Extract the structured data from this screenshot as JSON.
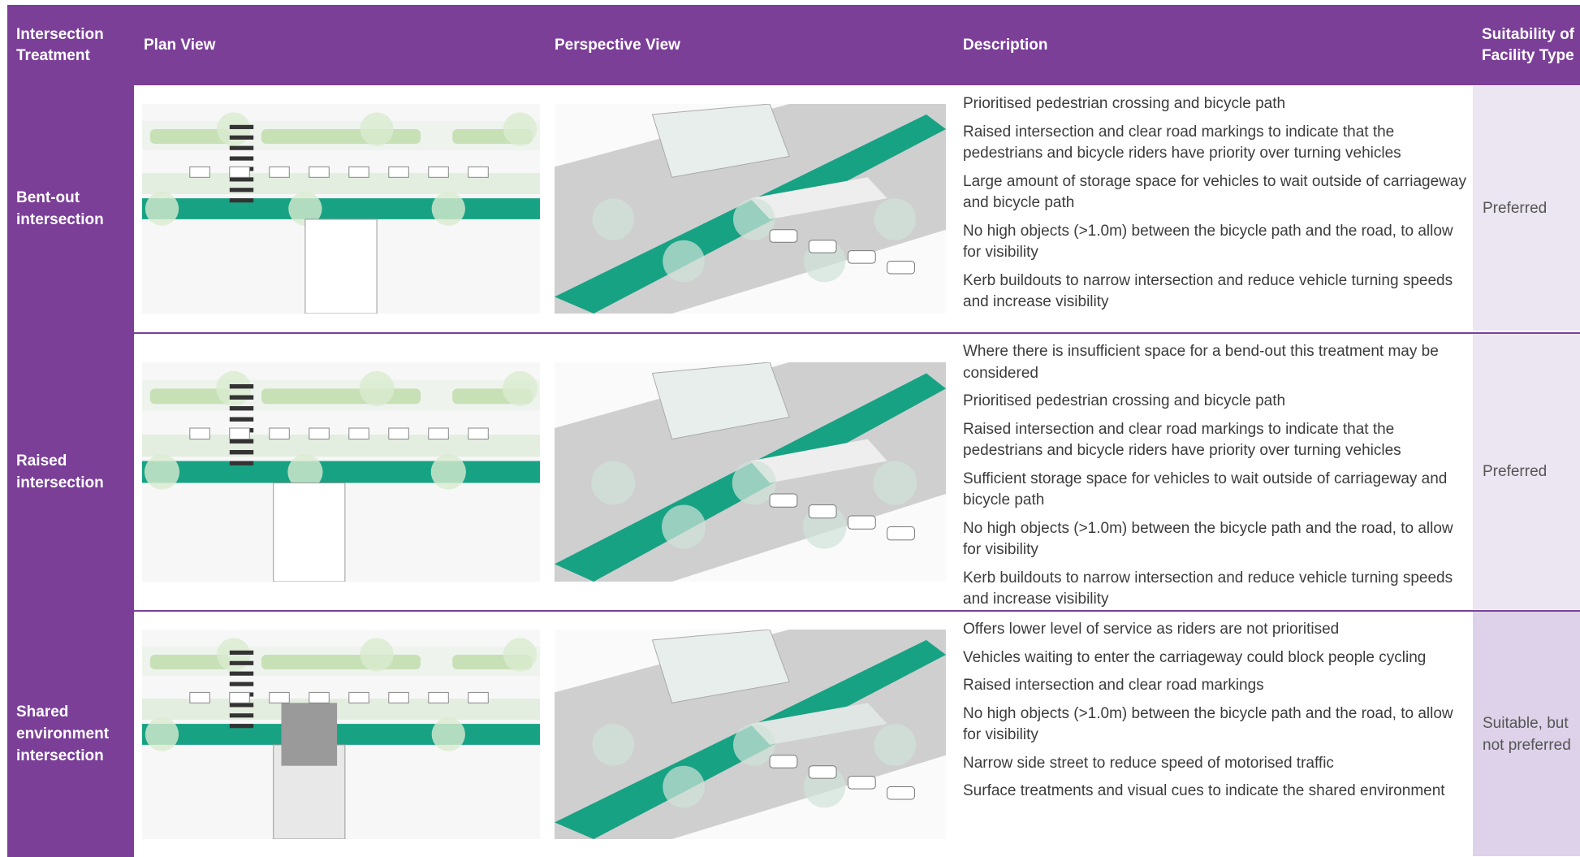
{
  "header": {
    "columns": [
      "Intersection Treatment",
      "Plan View",
      "Perspective View",
      "Description",
      "Suitability of Facility Type"
    ]
  },
  "rows": [
    {
      "treatment": "Bent-out intersection",
      "suitability": "Preferred",
      "description": [
        "Prioritised pedestrian crossing and bicycle path",
        "Raised intersection and clear road markings to indicate that the pedestrians and bicycle riders have priority over turning vehicles",
        "Large amount of storage space for vehicles to wait outside of carriageway and bicycle path",
        "No high objects (>1.0m) between the bicycle path and the road, to allow for visibility",
        "Kerb buildouts to narrow intersection and reduce vehicle turning speeds and increase visibility"
      ]
    },
    {
      "treatment": "Raised intersection",
      "suitability": "Preferred",
      "description": [
        "Where there is insufficient space for a bend-out this treatment may be considered",
        "Prioritised pedestrian crossing and bicycle path",
        "Raised intersection and clear road markings to indicate that the pedestrians and bicycle riders have priority over turning vehicles",
        "Sufficient storage space for vehicles to wait outside of carriageway and bicycle path",
        "No high objects (>1.0m) between the bicycle path and the road, to allow for visibility",
        "Kerb buildouts to narrow intersection and reduce vehicle turning speeds and increase visibility"
      ]
    },
    {
      "treatment": "Shared environment intersection",
      "suitability": "Suitable, but not preferred",
      "description": [
        "Offers lower level of service as riders are not prioritised",
        "Vehicles waiting to enter the carriageway could block people cycling",
        "Raised intersection and clear road markings",
        "No high objects (>1.0m) between the bicycle path and the road, to allow for visibility",
        "Narrow side street to reduce speed of motorised traffic",
        "Surface treatments and visual cues to indicate the shared environment"
      ]
    }
  ]
}
